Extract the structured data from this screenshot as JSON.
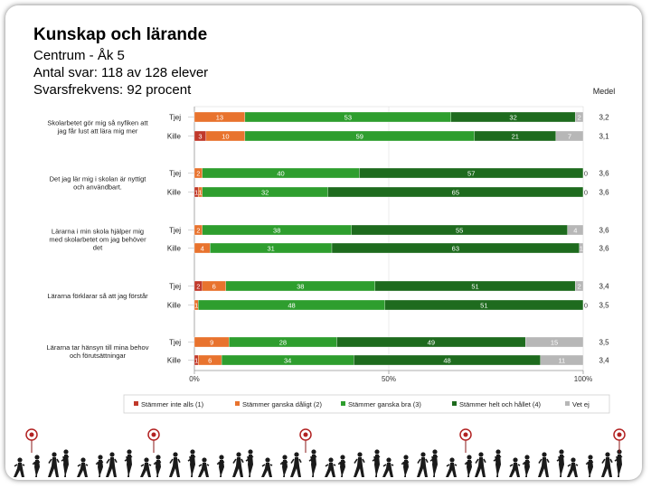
{
  "header": {
    "title": "Kunskap och lärande",
    "line1": "Centrum - Åk 5",
    "line2": "Antal svar: 118 av 128 elever",
    "line3": "Svarsfrekvens: 92 procent"
  },
  "chart_data": {
    "type": "bar",
    "orientation": "horizontal-stacked-100",
    "mean_header": "Medel",
    "categories": [
      {
        "label": "Skolarbetet gör mig så nyfiken att jag får lust att lära mig mer",
        "lines": [
          "Skolarbetet gör mig så nyfiken att",
          "jag får lust att lära mig mer"
        ],
        "rows": [
          {
            "group": "Tjej",
            "values": [
              0,
              13,
              53,
              32,
              2
            ],
            "mean": "3,2"
          },
          {
            "group": "Kille",
            "values": [
              3,
              10,
              59,
              21,
              7
            ],
            "mean": "3,1"
          }
        ]
      },
      {
        "label": "Det jag lär mig i skolan är nyttigt och användbart.",
        "lines": [
          "Det jag lär mig i skolan är nyttigt",
          "och användbart."
        ],
        "rows": [
          {
            "group": "Tjej",
            "values": [
              0,
              2,
              40,
              57,
              0
            ],
            "mean": "3,6"
          },
          {
            "group": "Kille",
            "values": [
              1,
              1,
              32,
              65,
              0
            ],
            "mean": "3,6"
          }
        ]
      },
      {
        "label": "Lärarna i min skola hjälper mig med skolarbetet om jag behöver det",
        "lines": [
          "Lärarna i min skola hjälper mig",
          "med skolarbetet om jag behöver",
          "det"
        ],
        "rows": [
          {
            "group": "Tjej",
            "values": [
              0,
              2,
              38,
              55,
              4
            ],
            "mean": "3,6"
          },
          {
            "group": "Kille",
            "values": [
              0,
              4,
              31,
              63,
              1
            ],
            "mean": "3,6"
          }
        ]
      },
      {
        "label": "Lärarna förklarar så att jag förstår",
        "lines": [
          "Lärarna förklarar så att jag förstår"
        ],
        "rows": [
          {
            "group": "Tjej",
            "values": [
              2,
              6,
              38,
              51,
              2
            ],
            "mean": "3,4"
          },
          {
            "group": "Kille",
            "values": [
              0,
              1,
              48,
              51,
              0
            ],
            "mean": "3,5"
          }
        ]
      },
      {
        "label": "Lärarna tar hänsyn till mina behov och förutsättningar",
        "lines": [
          "Lärarna tar hänsyn till mina behov",
          "och förutsättningar"
        ],
        "rows": [
          {
            "group": "Tjej",
            "values": [
              0,
              9,
              28,
              49,
              15
            ],
            "mean": "3,5"
          },
          {
            "group": "Kille",
            "values": [
              1,
              6,
              34,
              48,
              11
            ],
            "mean": "3,4"
          }
        ]
      }
    ],
    "series": [
      {
        "name": "Stämmer inte alls (1)",
        "color": "#c0392b"
      },
      {
        "name": "Stämmer ganska dåligt (2)",
        "color": "#e8732e"
      },
      {
        "name": "Stämmer ganska bra (3)",
        "color": "#2e9e2e"
      },
      {
        "name": "Stämmer helt och hållet (4)",
        "color": "#1e6b1e"
      },
      {
        "name": "Vet ej",
        "color": "#b7b7b7"
      }
    ],
    "xticks": [
      "0%",
      "50%",
      "100%"
    ],
    "xlim": [
      0,
      100
    ]
  },
  "footer": {
    "icon": "people-silhouettes-icon"
  }
}
